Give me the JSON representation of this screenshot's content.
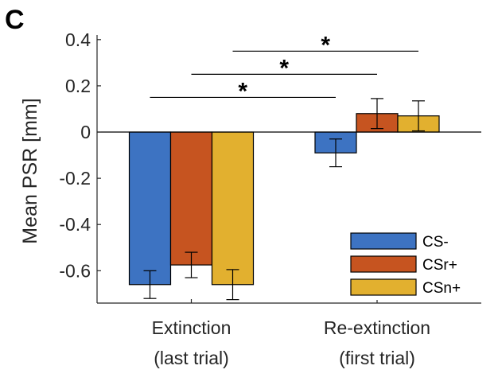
{
  "panel_label": "C",
  "chart_data": {
    "type": "bar",
    "ylabel": "Mean PSR [mm]",
    "xlabel": "",
    "ylim": [
      -0.74,
      0.42
    ],
    "yticks": [
      0.4,
      0.2,
      0,
      -0.2,
      -0.4,
      -0.6
    ],
    "ytick_labels": [
      "0.4",
      "0.2",
      "0",
      "-0.2",
      "-0.4",
      "-0.6"
    ],
    "categories": [
      {
        "line1": "Extinction",
        "line2": "(last trial)"
      },
      {
        "line1": "Re-extinction",
        "line2": "(first trial)"
      }
    ],
    "series": [
      {
        "name": "CS-",
        "color": "#3d73c2",
        "values": [
          -0.66,
          -0.09
        ],
        "error": [
          0.06,
          0.06
        ]
      },
      {
        "name": "CSr+",
        "color": "#c65420",
        "values": [
          -0.575,
          0.08
        ],
        "error": [
          0.055,
          0.065
        ]
      },
      {
        "name": "CSn+",
        "color": "#e2b02f",
        "values": [
          -0.66,
          0.07
        ],
        "error": [
          0.065,
          0.065
        ]
      }
    ],
    "comparisons": [
      {
        "from_series": "CS-",
        "to_series": "CS-",
        "y": 0.15,
        "label": "*"
      },
      {
        "from_series": "CSr+",
        "to_series": "CSr+",
        "y": 0.25,
        "label": "*"
      },
      {
        "from_series": "CSn+",
        "to_series": "CSn+",
        "y": 0.35,
        "label": "*"
      }
    ],
    "legend_position": "bottom-right",
    "grid": false
  }
}
